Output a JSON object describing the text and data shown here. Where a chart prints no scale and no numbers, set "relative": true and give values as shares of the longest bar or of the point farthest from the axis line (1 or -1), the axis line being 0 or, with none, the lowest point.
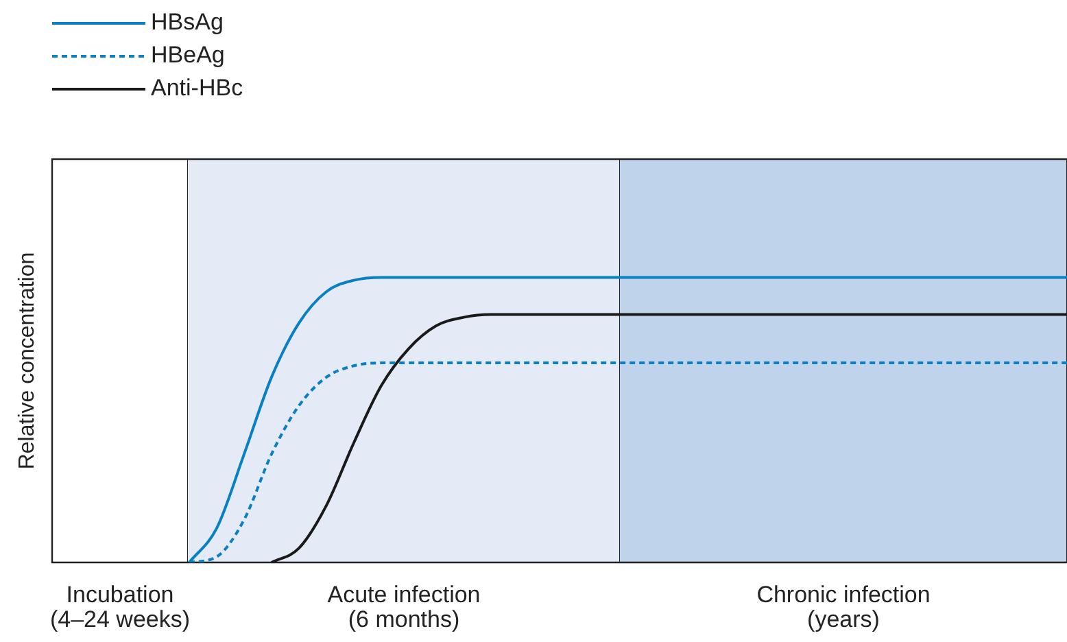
{
  "chart_data": {
    "type": "line",
    "relative": true,
    "ylabel": "Relative concentration",
    "categories": [
      null,
      null,
      null,
      null,
      null,
      null,
      null,
      null,
      null,
      null,
      null,
      null,
      null,
      null,
      null,
      null,
      null,
      null,
      null,
      null,
      null,
      null,
      null,
      null,
      null,
      null,
      null,
      null,
      null,
      null,
      null,
      null,
      null,
      null,
      null,
      null,
      null,
      null
    ],
    "series": [
      {
        "name": "HBsAg",
        "color": "#0a7fc2",
        "line_style": "solid",
        "values": [
          null,
          null,
          null,
          null,
          null,
          0,
          0.12,
          0.38,
          0.65,
          0.84,
          0.95,
          0.99,
          1,
          1,
          1,
          1,
          1,
          1,
          1,
          1,
          1,
          1,
          1,
          1,
          1,
          1,
          1,
          1,
          1,
          1,
          1,
          1,
          1,
          1,
          1,
          1,
          1,
          1
        ]
      },
      {
        "name": "HBeAg",
        "color": "#0a7fc2",
        "line_style": "dashed",
        "values": [
          null,
          null,
          null,
          null,
          null,
          0,
          0.02,
          0.15,
          0.38,
          0.55,
          0.65,
          0.69,
          0.7,
          0.7,
          0.7,
          0.7,
          0.7,
          0.7,
          0.7,
          0.7,
          0.7,
          0.7,
          0.7,
          0.7,
          0.7,
          0.7,
          0.7,
          0.7,
          0.7,
          0.7,
          0.7,
          0.7,
          0.7,
          0.7,
          0.7,
          0.7,
          0.7,
          0.7
        ]
      },
      {
        "name": "Anti-HBc",
        "color": "#1a1a1a",
        "line_style": "solid",
        "values": [
          null,
          null,
          null,
          null,
          null,
          null,
          null,
          null,
          0,
          0.05,
          0.2,
          0.42,
          0.62,
          0.75,
          0.83,
          0.86,
          0.87,
          0.87,
          0.87,
          0.87,
          0.87,
          0.87,
          0.87,
          0.87,
          0.87,
          0.87,
          0.87,
          0.87,
          0.87,
          0.87,
          0.87,
          0.87,
          0.87,
          0.87,
          0.87,
          0.87,
          0.87,
          0.87
        ]
      }
    ],
    "annotations": [
      "Incubation\n(4–24 weeks)",
      "Acute infection\n(6 months)",
      "Chronic infection\n(years)"
    ],
    "legend": "top left",
    "marker": "none"
  }
}
